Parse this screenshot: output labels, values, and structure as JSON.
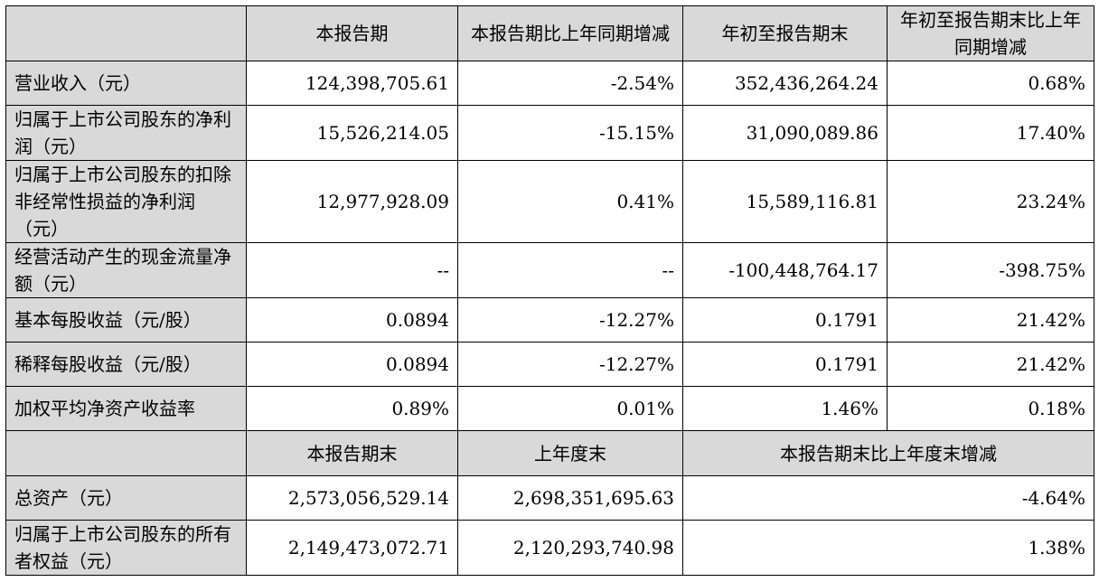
{
  "header": [
    "本报告期",
    "本报告期比上年同期增减",
    "年初至报告期末",
    "年初至报告期末比上年同期增减"
  ],
  "rows": [
    {
      "label": "营业收入（元）",
      "cells": [
        "124,398,705.61",
        "-2.54%",
        "352,436,264.24",
        "0.68%"
      ]
    },
    {
      "label": "归属于上市公司股东的净利润（元）",
      "cells": [
        "15,526,214.05",
        "-15.15%",
        "31,090,089.86",
        "17.40%"
      ]
    },
    {
      "label": "归属于上市公司股东的扣除非经常性损益的净利润（元）",
      "cells": [
        "12,977,928.09",
        "0.41%",
        "15,589,116.81",
        "23.24%"
      ]
    },
    {
      "label": "经营活动产生的现金流量净额（元）",
      "cells": [
        "--",
        "--",
        "-100,448,764.17",
        "-398.75%"
      ]
    },
    {
      "label": "基本每股收益（元/股）",
      "cells": [
        "0.0894",
        "-12.27%",
        "0.1791",
        "21.42%"
      ]
    },
    {
      "label": "稀释每股收益（元/股）",
      "cells": [
        "0.0894",
        "-12.27%",
        "0.1791",
        "21.42%"
      ]
    },
    {
      "label": "加权平均净资产收益率",
      "cells": [
        "0.89%",
        "0.01%",
        "1.46%",
        "0.18%"
      ]
    }
  ],
  "header2": [
    "本报告期末",
    "上年度末",
    "本报告期末比上年度末增减"
  ],
  "rows2": [
    {
      "label": "总资产（元）",
      "cells": [
        "2,573,056,529.14",
        "2,698,351,695.63",
        "-4.64%"
      ]
    },
    {
      "label": "归属于上市公司股东的所有者权益（元）",
      "cells": [
        "2,149,473,072.71",
        "2,120,293,740.98",
        "1.38%"
      ]
    }
  ]
}
